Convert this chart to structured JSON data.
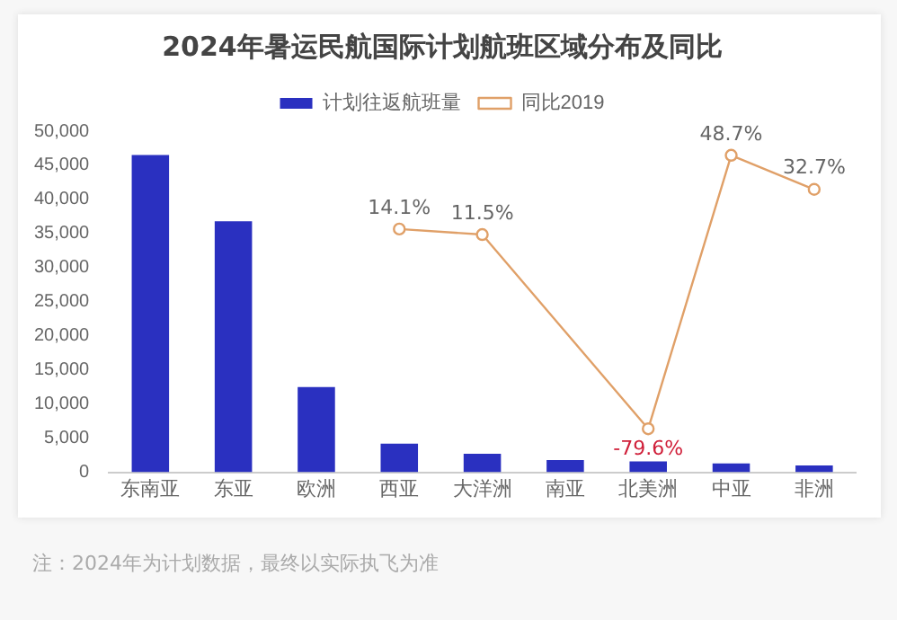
{
  "chart_data": {
    "type": "bar",
    "title": "2024年暑运民航国际计划航班区域分布及同比",
    "categories": [
      "东南亚",
      "东亚",
      "欧洲",
      "西亚",
      "大洋洲",
      "南亚",
      "北美洲",
      "中亚",
      "非洲"
    ],
    "series": [
      {
        "name": "计划往返航班量",
        "color": "#2a30c0",
        "values": [
          46500,
          36800,
          12500,
          4200,
          2700,
          1800,
          1600,
          1300,
          1000
        ]
      },
      {
        "name": "同比2019",
        "type": "line",
        "axis": "y2",
        "color": "#e0a068",
        "marker": "circle",
        "values": [
          null,
          null,
          null,
          14.1,
          11.5,
          null,
          -79.6,
          48.7,
          32.7
        ],
        "value_labels": [
          null,
          null,
          null,
          "14.1%",
          "11.5%",
          null,
          "-79.6%",
          "48.7%",
          "32.7%"
        ]
      }
    ],
    "ylim": [
      0,
      50000
    ],
    "yticks": [
      0,
      {
        "value": 5000,
        "label": "5,000"
      },
      {
        "value": 10000,
        "label": "10,000"
      },
      {
        "value": 15000,
        "label": "15,000"
      },
      {
        "value": 20000,
        "label": "20,000"
      },
      {
        "value": 25000,
        "label": "25,000"
      },
      {
        "value": 30000,
        "label": "30,000"
      },
      {
        "value": 35000,
        "label": "35,000"
      },
      {
        "value": 40000,
        "label": "40,000"
      },
      {
        "value": 45000,
        "label": "45,000"
      },
      {
        "value": 50000,
        "label": "50,000"
      }
    ],
    "grid": false,
    "legend": "top",
    "annotations": [
      "注：2024年为计划数据，最终以实际执飞为准"
    ]
  }
}
